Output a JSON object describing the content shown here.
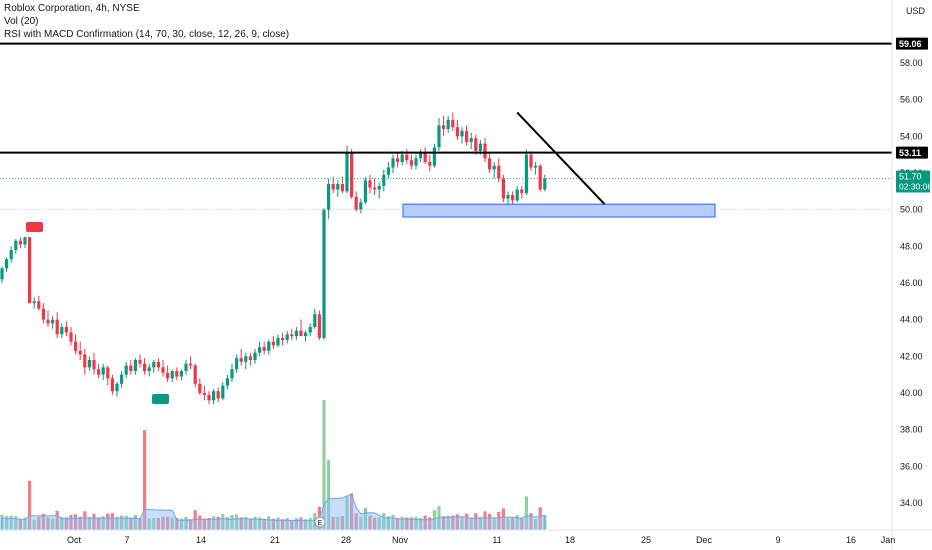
{
  "header": {
    "symbol_line": "Roblox Corporation, 4h, NYSE",
    "vol_line": "Vol (20)",
    "indicator_line": "RSI with MACD Confirmation (14, 70, 30, close, 12, 26, 9, close)"
  },
  "price_axis": {
    "currency": "USD",
    "ticks": [
      "58.00",
      "56.00",
      "54.00",
      "52.00",
      "50.00",
      "48.00",
      "46.00",
      "44.00",
      "42.00",
      "40.00",
      "38.00",
      "36.00",
      "34.00"
    ]
  },
  "labels": {
    "level_high": "59.06",
    "level_mid": "53.11",
    "last_price": "51.70",
    "countdown": "02:30:06",
    "event_marker": "E"
  },
  "colors": {
    "up": "#089981",
    "down": "#f23645",
    "vol_up": "#8fd19e",
    "vol_down": "#f77c80",
    "vol_ma": "#90bff9",
    "zone_fill": "#a9c5fb",
    "zone_border": "#2962ff",
    "line": "#000000",
    "sell_badge": "#f23645",
    "buy_badge": "#089981"
  },
  "chart_data": {
    "type": "candlestick",
    "timeframe": "4h",
    "x_axis_ticks": [
      "Oct",
      "7",
      "14",
      "21",
      "28",
      "Nov",
      "11",
      "18",
      "25",
      "Dec",
      "9",
      "16",
      "Jan"
    ],
    "ylim": [
      32.5,
      60.5
    ],
    "horizontal_levels": [
      59.06,
      53.11
    ],
    "support_zone": [
      49.6,
      50.3
    ],
    "trendline": [
      {
        "bar": 112,
        "price": 55.3
      },
      {
        "bar": 131,
        "price": 50.3
      }
    ],
    "candles": [
      [
        46.2,
        46.9,
        46.0,
        46.8
      ],
      [
        46.8,
        47.4,
        46.6,
        47.3
      ],
      [
        47.3,
        48.0,
        47.1,
        47.8
      ],
      [
        47.8,
        48.4,
        47.6,
        48.3
      ],
      [
        48.3,
        48.5,
        47.9,
        48.1
      ],
      [
        48.1,
        48.5,
        47.9,
        48.5
      ],
      [
        48.5,
        48.5,
        44.9,
        44.9
      ],
      [
        44.9,
        45.2,
        44.6,
        45.0
      ],
      [
        45.0,
        45.3,
        44.5,
        44.6
      ],
      [
        44.6,
        44.9,
        43.8,
        44.0
      ],
      [
        44.0,
        44.5,
        43.6,
        43.8
      ],
      [
        43.8,
        44.2,
        43.5,
        44.0
      ],
      [
        44.0,
        44.4,
        43.0,
        43.2
      ],
      [
        43.2,
        43.8,
        43.0,
        43.6
      ],
      [
        43.6,
        43.9,
        43.1,
        43.3
      ],
      [
        43.3,
        43.6,
        42.6,
        42.8
      ],
      [
        42.8,
        43.2,
        42.1,
        42.3
      ],
      [
        42.3,
        42.8,
        41.8,
        42.1
      ],
      [
        42.1,
        42.4,
        41.0,
        41.4
      ],
      [
        41.4,
        42.0,
        41.2,
        41.8
      ],
      [
        41.8,
        42.2,
        41.0,
        41.3
      ],
      [
        41.3,
        41.6,
        40.8,
        41.0
      ],
      [
        41.0,
        41.6,
        40.7,
        41.4
      ],
      [
        41.4,
        41.5,
        40.4,
        40.8
      ],
      [
        40.8,
        41.0,
        39.9,
        40.1
      ],
      [
        40.1,
        40.6,
        39.8,
        40.5
      ],
      [
        40.5,
        41.2,
        40.3,
        41.0
      ],
      [
        41.0,
        41.7,
        40.8,
        41.5
      ],
      [
        41.5,
        41.8,
        41.0,
        41.2
      ],
      [
        41.2,
        41.9,
        41.0,
        41.8
      ],
      [
        41.8,
        42.1,
        41.4,
        41.6
      ],
      [
        41.6,
        41.9,
        41.0,
        41.2
      ],
      [
        41.2,
        41.6,
        40.9,
        41.4
      ],
      [
        41.4,
        41.8,
        41.1,
        41.7
      ],
      [
        41.7,
        41.9,
        41.2,
        41.4
      ],
      [
        41.4,
        41.8,
        40.9,
        41.1
      ],
      [
        41.1,
        41.5,
        40.6,
        40.8
      ],
      [
        40.8,
        41.3,
        40.6,
        41.2
      ],
      [
        41.2,
        41.4,
        40.7,
        40.9
      ],
      [
        40.9,
        41.3,
        40.7,
        41.2
      ],
      [
        41.2,
        41.8,
        41.0,
        41.6
      ],
      [
        41.6,
        42.0,
        41.3,
        41.5
      ],
      [
        41.5,
        41.6,
        40.3,
        40.5
      ],
      [
        40.5,
        40.8,
        39.9,
        40.0
      ],
      [
        40.0,
        40.4,
        39.6,
        39.9
      ],
      [
        39.9,
        40.1,
        39.4,
        39.6
      ],
      [
        39.6,
        40.2,
        39.4,
        40.1
      ],
      [
        40.1,
        40.3,
        39.5,
        39.7
      ],
      [
        39.7,
        40.6,
        39.6,
        40.4
      ],
      [
        40.4,
        41.0,
        40.2,
        40.8
      ],
      [
        40.8,
        41.6,
        40.6,
        41.3
      ],
      [
        41.3,
        42.1,
        41.1,
        41.9
      ],
      [
        41.9,
        42.4,
        41.5,
        41.7
      ],
      [
        41.7,
        42.2,
        41.3,
        42.0
      ],
      [
        42.0,
        42.2,
        41.5,
        41.8
      ],
      [
        41.8,
        42.4,
        41.6,
        42.2
      ],
      [
        42.2,
        42.8,
        42.0,
        42.5
      ],
      [
        42.5,
        42.8,
        42.1,
        42.3
      ],
      [
        42.3,
        42.9,
        42.1,
        42.8
      ],
      [
        42.8,
        43.1,
        42.4,
        42.6
      ],
      [
        42.6,
        43.2,
        42.5,
        43.0
      ],
      [
        43.0,
        43.3,
        42.6,
        42.9
      ],
      [
        42.9,
        43.4,
        42.7,
        43.2
      ],
      [
        43.2,
        43.5,
        42.9,
        43.1
      ],
      [
        43.1,
        43.6,
        42.9,
        43.4
      ],
      [
        43.4,
        44.0,
        43.2,
        43.1
      ],
      [
        43.1,
        43.4,
        42.8,
        43.3
      ],
      [
        43.3,
        43.8,
        43.1,
        43.6
      ],
      [
        43.6,
        44.6,
        43.5,
        44.3
      ],
      [
        44.3,
        44.5,
        42.9,
        43.0
      ],
      [
        43.0,
        50.1,
        42.9,
        50.0
      ],
      [
        50.0,
        51.7,
        49.5,
        51.4
      ],
      [
        51.4,
        51.8,
        50.9,
        51.1
      ],
      [
        51.1,
        51.6,
        50.7,
        51.4
      ],
      [
        51.4,
        51.8,
        50.9,
        51.0
      ],
      [
        51.0,
        53.5,
        50.9,
        53.1
      ],
      [
        53.1,
        53.3,
        50.6,
        50.7
      ],
      [
        50.7,
        51.0,
        49.9,
        50.0
      ],
      [
        50.0,
        50.6,
        49.8,
        50.4
      ],
      [
        50.4,
        51.8,
        50.3,
        51.6
      ],
      [
        51.6,
        51.9,
        50.9,
        51.2
      ],
      [
        51.2,
        51.7,
        50.8,
        51.1
      ],
      [
        51.1,
        51.5,
        50.6,
        51.3
      ],
      [
        51.3,
        52.2,
        51.0,
        51.9
      ],
      [
        51.9,
        52.6,
        51.7,
        52.3
      ],
      [
        52.3,
        53.0,
        52.0,
        52.8
      ],
      [
        52.8,
        53.1,
        52.3,
        52.6
      ],
      [
        52.6,
        53.2,
        52.4,
        53.0
      ],
      [
        53.0,
        53.3,
        52.5,
        52.7
      ],
      [
        52.7,
        53.0,
        52.2,
        52.4
      ],
      [
        52.4,
        53.0,
        52.2,
        52.8
      ],
      [
        52.8,
        53.3,
        52.6,
        53.1
      ],
      [
        53.1,
        53.4,
        52.5,
        52.6
      ],
      [
        52.6,
        53.0,
        52.1,
        52.4
      ],
      [
        52.4,
        53.6,
        52.3,
        53.4
      ],
      [
        53.4,
        55.0,
        53.2,
        54.6
      ],
      [
        54.6,
        55.1,
        54.0,
        54.4
      ],
      [
        54.4,
        55.1,
        54.2,
        54.9
      ],
      [
        54.9,
        55.3,
        54.3,
        54.5
      ],
      [
        54.5,
        54.9,
        53.8,
        54.0
      ],
      [
        54.0,
        54.5,
        53.6,
        54.3
      ],
      [
        54.3,
        54.6,
        53.5,
        53.7
      ],
      [
        53.7,
        54.2,
        53.3,
        53.9
      ],
      [
        53.9,
        54.1,
        53.0,
        53.2
      ],
      [
        53.2,
        53.8,
        53.0,
        53.6
      ],
      [
        53.6,
        53.9,
        52.6,
        52.8
      ],
      [
        52.8,
        53.1,
        52.0,
        52.2
      ],
      [
        52.2,
        52.6,
        51.7,
        52.4
      ],
      [
        52.4,
        52.8,
        51.5,
        51.7
      ],
      [
        51.7,
        51.9,
        50.4,
        50.6
      ],
      [
        50.6,
        51.0,
        50.2,
        50.8
      ],
      [
        50.8,
        51.0,
        50.3,
        50.5
      ],
      [
        50.5,
        51.3,
        50.4,
        51.1
      ],
      [
        51.1,
        51.3,
        50.6,
        50.9
      ],
      [
        50.9,
        53.3,
        50.8,
        53.0
      ],
      [
        53.0,
        53.2,
        52.1,
        52.3
      ],
      [
        52.3,
        52.6,
        51.9,
        52.4
      ],
      [
        52.4,
        52.5,
        51.0,
        51.1
      ],
      [
        51.1,
        51.9,
        51.0,
        51.7
      ]
    ]
  }
}
